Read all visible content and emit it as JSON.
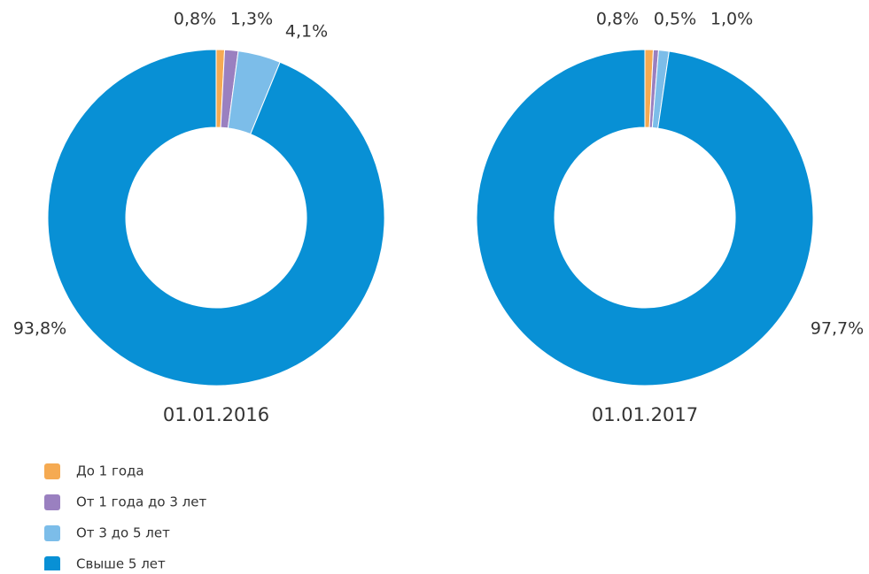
{
  "chart_data": [
    {
      "type": "donut",
      "title": "01.01.2016",
      "categories": [
        "До 1 года",
        "От 1 года до 3 лет",
        "От 3 до 5 лет",
        "Свыше 5 лет"
      ],
      "values": [
        0.8,
        1.3,
        4.1,
        93.8
      ],
      "value_labels": [
        "0,8%",
        "1,3%",
        "4,1%",
        "93,8%"
      ],
      "colors": [
        "#f5aa52",
        "#9a80c0",
        "#7cbde9",
        "#0890d5"
      ]
    },
    {
      "type": "donut",
      "title": "01.01.2017",
      "categories": [
        "До 1 года",
        "От 1 года до 3 лет",
        "От 3 до 5 лет",
        "Свыше 5 лет"
      ],
      "values": [
        0.8,
        0.5,
        1.0,
        97.7
      ],
      "value_labels": [
        "0,8%",
        "0,5%",
        "1,0%",
        "97,7%"
      ],
      "colors": [
        "#f5aa52",
        "#9a80c0",
        "#7cbde9",
        "#0890d5"
      ]
    }
  ]
}
